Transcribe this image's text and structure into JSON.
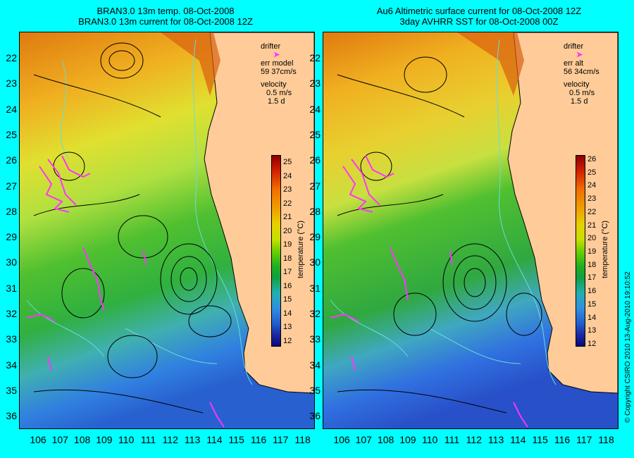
{
  "left_panel": {
    "title_line1": "BRAN3.0 13m temp. 08-Oct-2008",
    "title_line2": "BRAN3.0 13m current for 08-Oct-2008 12Z",
    "legend": {
      "drifter_label": "drifter",
      "err_label": "err model",
      "err_value": "59 37cm/s",
      "velocity_label": "velocity",
      "velocity_scale": "0.5 m/s",
      "time_scale": "1.5 d"
    }
  },
  "right_panel": {
    "title_line1": "Au6 Altimetric surface current for 08-Oct-2008 12Z",
    "title_line2": "3day AVHRR SST for 08-Oct-2008 00Z",
    "legend": {
      "drifter_label": "drifter",
      "err_label": "err alt",
      "err_value": "56 34cm/s",
      "velocity_label": "velocity",
      "velocity_scale": "0.5 m/s",
      "time_scale": "1.5 d"
    }
  },
  "axes": {
    "latitudes": [
      "22",
      "23",
      "24",
      "25",
      "26",
      "27",
      "28",
      "29",
      "30",
      "31",
      "32",
      "33",
      "34",
      "35",
      "36"
    ],
    "longitudes": [
      "106",
      "107",
      "108",
      "109",
      "110",
      "111",
      "112",
      "113",
      "114",
      "115",
      "116",
      "117",
      "118"
    ]
  },
  "colorbar": {
    "left_ticks": [
      "25",
      "24",
      "23",
      "22",
      "21",
      "20",
      "19",
      "18",
      "17",
      "16",
      "15",
      "14",
      "13",
      "12"
    ],
    "right_ticks": [
      "26",
      "25",
      "24",
      "23",
      "22",
      "21",
      "20",
      "19",
      "18",
      "17",
      "16",
      "15",
      "14",
      "13",
      "12"
    ],
    "label": "temperature (°C)"
  },
  "colors": {
    "background": "#00ffff",
    "land": "#ffcc99",
    "drifter": "#ff33ff",
    "contour": "#66dddd"
  },
  "copyright": "© Copyright CSIRO 2010   13-Aug-2010 19:10:52"
}
